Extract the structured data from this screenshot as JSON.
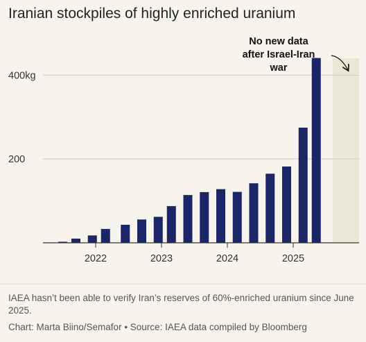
{
  "chart_data": {
    "type": "bar",
    "title": "Iranian stockpiles of highly enriched uranium",
    "xlabel": "",
    "ylabel": "",
    "ylim": [
      0,
      480
    ],
    "yticks": [
      {
        "value": 200,
        "label": "200"
      },
      {
        "value": 400,
        "label": "400kg"
      }
    ],
    "xticks": [
      {
        "x": 2022.0,
        "label": "2022"
      },
      {
        "x": 2023.0,
        "label": "2023"
      },
      {
        "x": 2024.0,
        "label": "2024"
      },
      {
        "x": 2025.0,
        "label": "2025"
      }
    ],
    "xlim": [
      2021.2,
      2026.0
    ],
    "grid": "horizontal",
    "bar_color": "#1c2566",
    "shade_color": "#ebe7d6",
    "x": [
      2021.5,
      2021.7,
      2021.95,
      2022.15,
      2022.45,
      2022.7,
      2022.95,
      2023.15,
      2023.4,
      2023.65,
      2023.9,
      2024.15,
      2024.4,
      2024.65,
      2024.9,
      2025.15,
      2025.35,
      2025.55
    ],
    "values": [
      2.5,
      10,
      17.6,
      33,
      43,
      55.6,
      62,
      87.5,
      114,
      121,
      128,
      121.5,
      142,
      164.9,
      182,
      274.8,
      441,
      null
    ],
    "no_data_region": [
      2025.6,
      2026.0
    ],
    "annotation": {
      "lines": [
        "No new data",
        "after Israel-Iran",
        "war"
      ]
    }
  },
  "footnote": "IAEA hasn’t been able to verify Iran’s reserves of 60%-enriched uranium since June 2025.",
  "credit": "Chart: Marta Biino/Semafor • Source: IAEA data compiled by Bloomberg"
}
